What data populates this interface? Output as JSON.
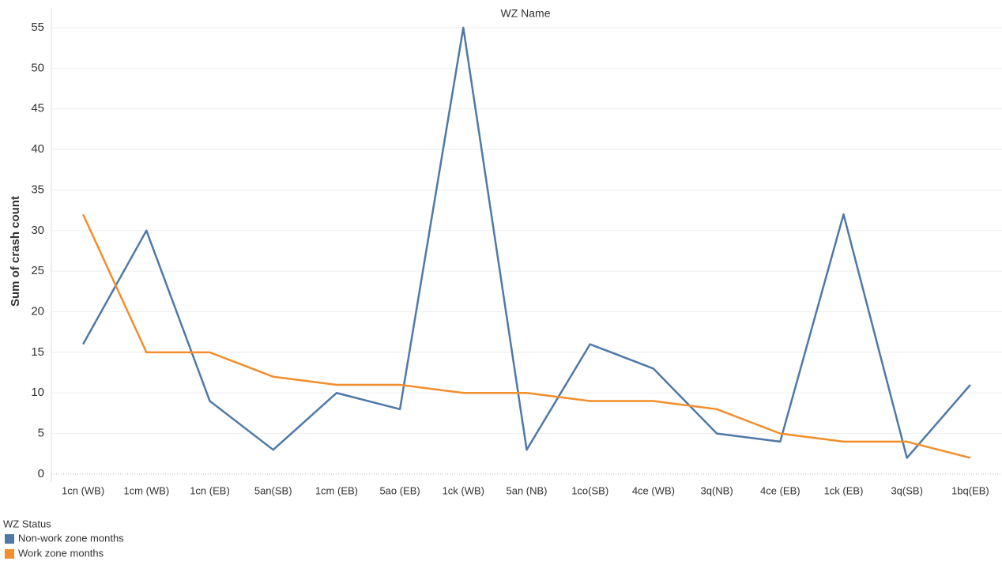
{
  "chart_data": {
    "type": "line",
    "x_label": "WZ Name",
    "y_label": "Sum of crash count",
    "categories": [
      "1cn (WB)",
      "1cm (WB)",
      "1cn (EB)",
      "5an(SB)",
      "1cm (EB)",
      "5ao (EB)",
      "1ck (WB)",
      "5an (NB)",
      "1co(SB)",
      "4ce (WB)",
      "3q(NB)",
      "4ce (EB)",
      "1ck (EB)",
      "3q(SB)",
      "1bq(EB)"
    ],
    "series": [
      {
        "name": "Non-work zone months",
        "color": "#4e79a7",
        "values": [
          16,
          30,
          9,
          3,
          10,
          8,
          55,
          3,
          16,
          13,
          5,
          4,
          32,
          2,
          11
        ]
      },
      {
        "name": "Work zone months",
        "color": "#f28e2b",
        "values": [
          32,
          15,
          15,
          12,
          11,
          11,
          10,
          10,
          9,
          9,
          8,
          5,
          4,
          4,
          2
        ]
      }
    ],
    "ylim": [
      0,
      55
    ],
    "yticks": [
      0,
      5,
      10,
      15,
      20,
      25,
      30,
      35,
      40,
      45,
      50,
      55
    ],
    "grid": true,
    "legend_title": "WZ Status",
    "legend_position": "bottom-left"
  }
}
